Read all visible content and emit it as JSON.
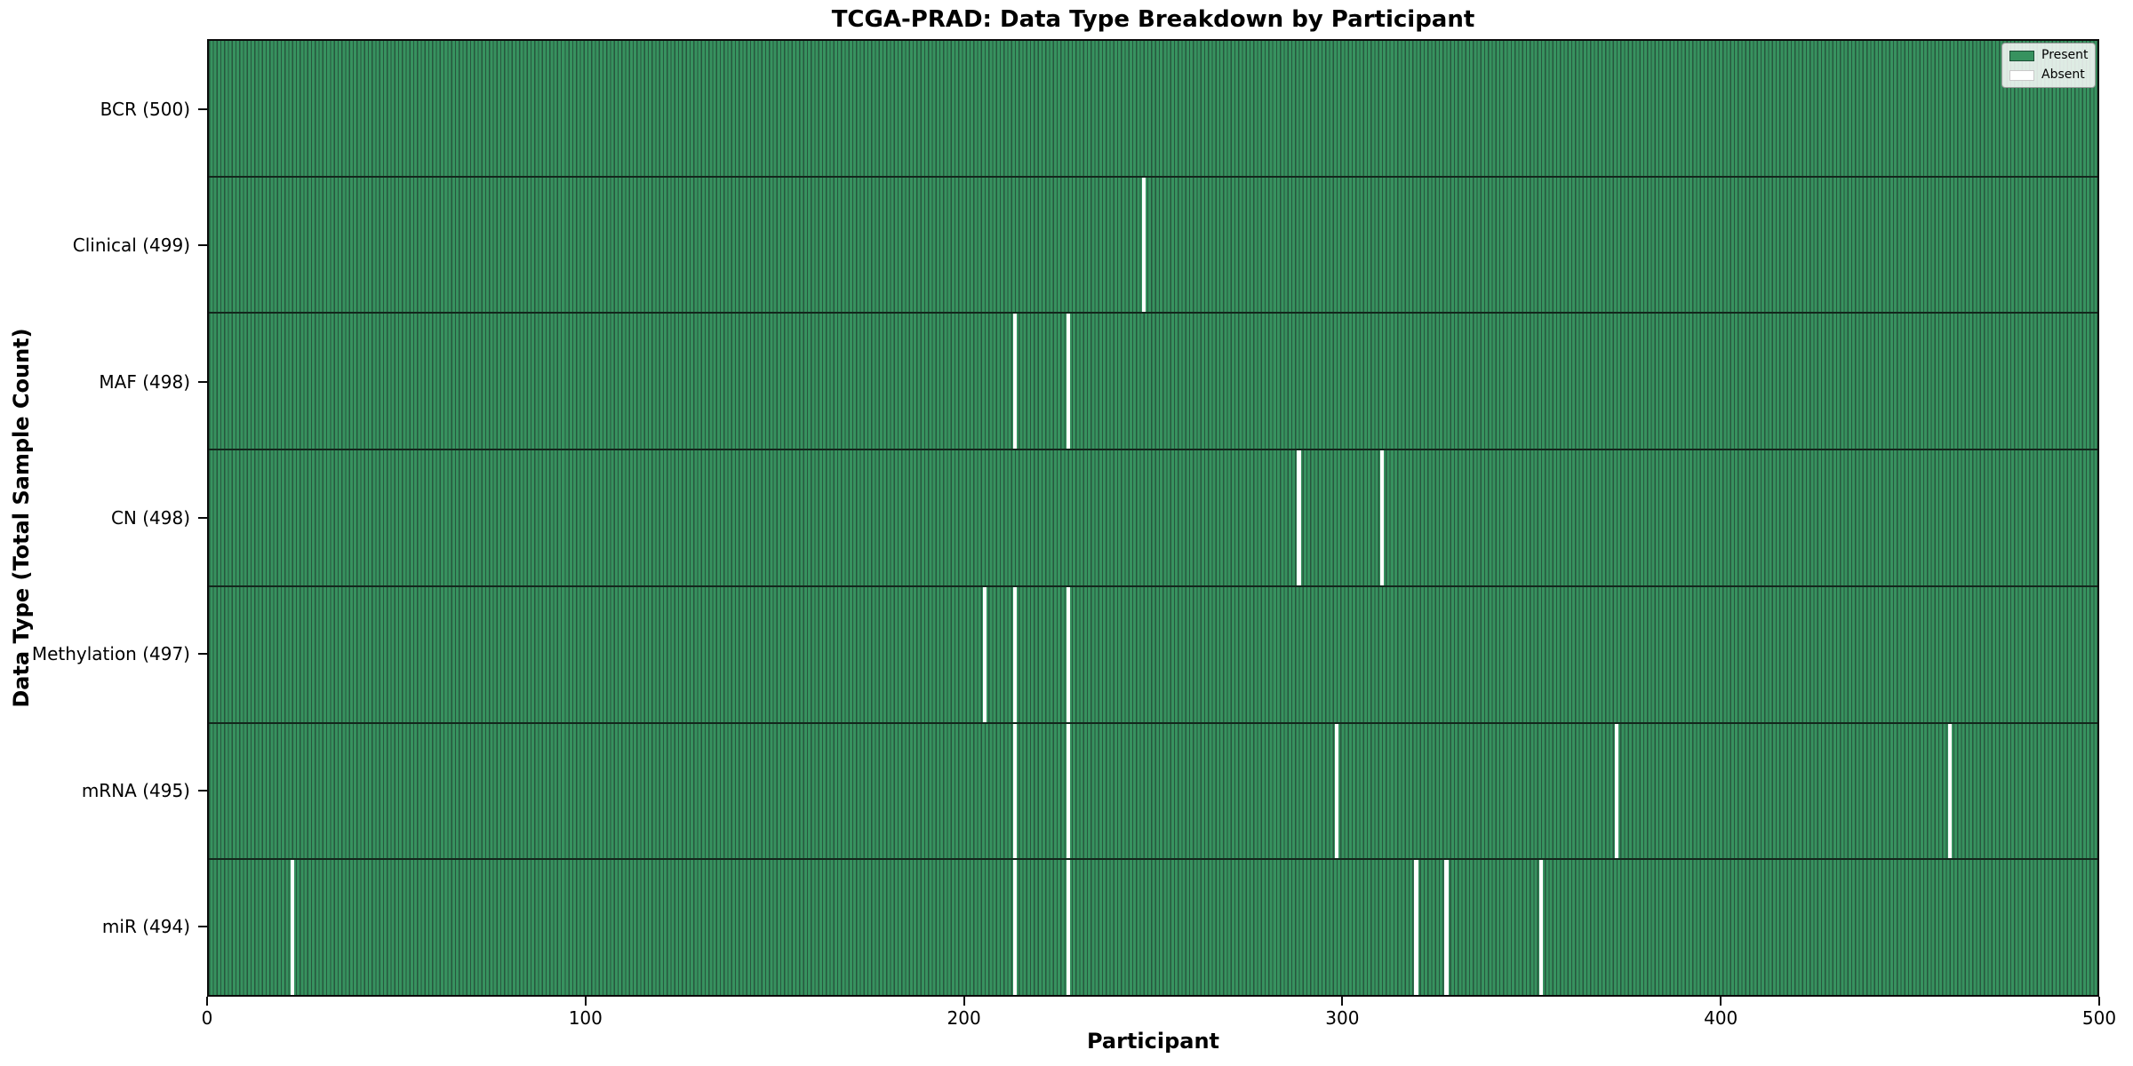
{
  "title": "TCGA-PRAD: Data Type Breakdown by Participant",
  "x_axis_label": "Participant",
  "y_axis_label": "Data Type (Total Sample Count)",
  "legend": {
    "present_label": "Present",
    "absent_label": "Absent"
  },
  "colors": {
    "present": "#37925f",
    "bar_edge": "#27573e",
    "absent": "#ffffff",
    "row_separator": "#13271c",
    "plot_border": "#0b0b0b"
  },
  "chart_data": {
    "type": "heatmap",
    "title": "TCGA-PRAD: Data Type Breakdown by Participant",
    "xlabel": "Participant",
    "ylabel": "Data Type (Total Sample Count)",
    "legend_entries": [
      "Present",
      "Absent"
    ],
    "legend_position": "upper right",
    "grid": false,
    "x_range": [
      0,
      500
    ],
    "n_participants": 500,
    "x_ticks": [
      0,
      100,
      200,
      300,
      400,
      500
    ],
    "rows": [
      {
        "name": "BCR",
        "label": "BCR (500)",
        "total": 500,
        "absent_participants": []
      },
      {
        "name": "Clinical",
        "label": "Clinical (499)",
        "total": 499,
        "absent_participants": [
          247
        ]
      },
      {
        "name": "MAF",
        "label": "MAF (498)",
        "total": 498,
        "absent_participants": [
          213,
          227
        ]
      },
      {
        "name": "CN",
        "label": "CN (498)",
        "total": 498,
        "absent_participants": [
          288,
          310
        ]
      },
      {
        "name": "Methylation",
        "label": "Methylation (497)",
        "total": 497,
        "absent_participants": [
          205,
          213,
          227
        ]
      },
      {
        "name": "mRNA",
        "label": "mRNA (495)",
        "total": 495,
        "absent_participants": [
          213,
          227,
          298,
          372,
          460
        ]
      },
      {
        "name": "miR",
        "label": "miR (494)",
        "total": 494,
        "absent_participants": [
          22,
          213,
          227,
          319,
          327,
          352
        ]
      }
    ]
  }
}
